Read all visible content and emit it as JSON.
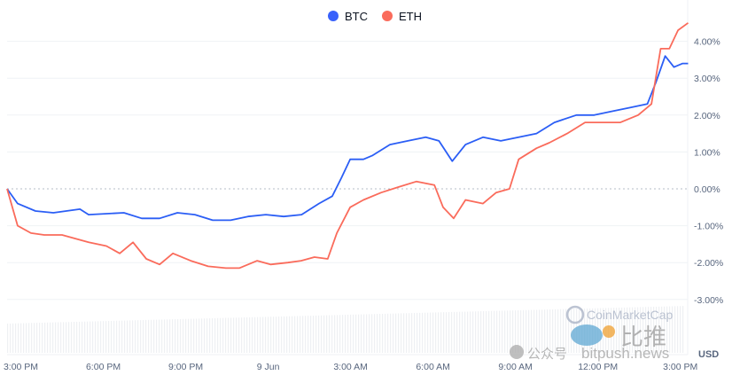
{
  "chart_data": {
    "type": "line",
    "title": "",
    "xlabel": "",
    "ylabel": "",
    "unit_label": "USD",
    "legend_position": "top-center",
    "grid": true,
    "ylim": [
      -3.5,
      4.8
    ],
    "y_ticks": [
      4,
      3,
      2,
      1,
      0,
      -1,
      -2,
      -3
    ],
    "y_tick_labels": [
      "4.00%",
      "3.00%",
      "2.00%",
      "1.00%",
      "0.00%",
      "-1.00%",
      "-2.00%",
      "-3.00%"
    ],
    "x_ticks": [
      "06-08T15:00",
      "06-08T18:00",
      "06-08T21:00",
      "06-09T00:00",
      "06-09T03:00",
      "06-09T06:00",
      "06-09T09:00",
      "06-09T12:00",
      "06-09T15:00"
    ],
    "x_tick_labels": [
      "3:00 PM",
      "6:00 PM",
      "9:00 PM",
      "9 Jun",
      "3:00 AM",
      "6:00 AM",
      "9:00 AM",
      "12:00 PM",
      "3:00 PM"
    ],
    "series": [
      {
        "name": "BTC",
        "color": "#3861fb",
        "points": [
          [
            "06-08T14:30",
            0
          ],
          [
            "06-08T14:53",
            -0.4
          ],
          [
            "06-08T15:32",
            -0.6
          ],
          [
            "06-08T16:11",
            -0.65
          ],
          [
            "06-08T17:09",
            -0.55
          ],
          [
            "06-08T17:28",
            -0.7
          ],
          [
            "06-08T18:45",
            -0.65
          ],
          [
            "06-08T19:24",
            -0.8
          ],
          [
            "06-08T20:03",
            -0.8
          ],
          [
            "06-08T20:42",
            -0.65
          ],
          [
            "06-08T21:20",
            -0.7
          ],
          [
            "06-08T21:59",
            -0.85
          ],
          [
            "06-08T22:38",
            -0.85
          ],
          [
            "06-08T23:16",
            -0.75
          ],
          [
            "06-08T23:55",
            -0.7
          ],
          [
            "06-09T00:34",
            -0.75
          ],
          [
            "06-09T01:13",
            -0.7
          ],
          [
            "06-09T01:51",
            -0.4
          ],
          [
            "06-09T02:20",
            -0.2
          ],
          [
            "06-09T02:40",
            0.3
          ],
          [
            "06-09T02:59",
            0.8
          ],
          [
            "06-09T03:28",
            0.8
          ],
          [
            "06-09T03:47",
            0.9
          ],
          [
            "06-09T04:26",
            1.2
          ],
          [
            "06-09T05:05",
            1.3
          ],
          [
            "06-09T05:44",
            1.4
          ],
          [
            "06-09T06:13",
            1.3
          ],
          [
            "06-09T06:42",
            0.75
          ],
          [
            "06-09T07:11",
            1.2
          ],
          [
            "06-09T07:49",
            1.4
          ],
          [
            "06-09T08:28",
            1.3
          ],
          [
            "06-09T09:07",
            1.4
          ],
          [
            "06-09T09:46",
            1.5
          ],
          [
            "06-09T10:25",
            1.8
          ],
          [
            "06-09T11:13",
            2.0
          ],
          [
            "06-09T11:52",
            2.0
          ],
          [
            "06-09T12:30",
            2.1
          ],
          [
            "06-09T13:09",
            2.2
          ],
          [
            "06-09T13:48",
            2.3
          ],
          [
            "06-09T14:07",
            2.9
          ],
          [
            "06-09T14:27",
            3.6
          ],
          [
            "06-09T14:46",
            3.3
          ],
          [
            "06-09T15:05",
            3.4
          ],
          [
            "06-09T15:17",
            3.4
          ]
        ]
      },
      {
        "name": "ETH",
        "color": "#ea3943",
        "points": [
          [
            "06-08T14:30",
            0
          ],
          [
            "06-08T14:53",
            -1.0
          ],
          [
            "06-08T15:22",
            -1.2
          ],
          [
            "06-08T15:51",
            -1.25
          ],
          [
            "06-08T16:30",
            -1.25
          ],
          [
            "06-08T17:28",
            -1.45
          ],
          [
            "06-08T18:07",
            -1.55
          ],
          [
            "06-08T18:36",
            -1.75
          ],
          [
            "06-08T19:05",
            -1.45
          ],
          [
            "06-08T19:34",
            -1.9
          ],
          [
            "06-08T20:03",
            -2.05
          ],
          [
            "06-08T20:32",
            -1.75
          ],
          [
            "06-08T21:11",
            -1.95
          ],
          [
            "06-08T21:49",
            -2.1
          ],
          [
            "06-08T22:28",
            -2.15
          ],
          [
            "06-08T22:57",
            -2.15
          ],
          [
            "06-08T23:36",
            -1.95
          ],
          [
            "06-09T00:05",
            -2.05
          ],
          [
            "06-09T00:43",
            -2.0
          ],
          [
            "06-09T01:12",
            -1.95
          ],
          [
            "06-09T01:41",
            -1.85
          ],
          [
            "06-09T02:10",
            -1.9
          ],
          [
            "06-09T02:30",
            -1.2
          ],
          [
            "06-09T02:59",
            -0.5
          ],
          [
            "06-09T03:28",
            -0.3
          ],
          [
            "06-09T04:07",
            -0.1
          ],
          [
            "06-09T04:45",
            0.05
          ],
          [
            "06-09T05:24",
            0.2
          ],
          [
            "06-09T06:03",
            0.1
          ],
          [
            "06-09T06:22",
            -0.5
          ],
          [
            "06-09T06:45",
            -0.8
          ],
          [
            "06-09T07:11",
            -0.3
          ],
          [
            "06-09T07:49",
            -0.4
          ],
          [
            "06-09T08:18",
            -0.1
          ],
          [
            "06-09T08:47",
            0
          ],
          [
            "06-09T09:07",
            0.8
          ],
          [
            "06-09T09:46",
            1.1
          ],
          [
            "06-09T10:14",
            1.25
          ],
          [
            "06-09T10:53",
            1.5
          ],
          [
            "06-09T11:32",
            1.8
          ],
          [
            "06-09T12:11",
            1.8
          ],
          [
            "06-09T12:49",
            1.8
          ],
          [
            "06-09T13:28",
            2.0
          ],
          [
            "06-09T13:57",
            2.3
          ],
          [
            "06-09T14:17",
            3.8
          ],
          [
            "06-09T14:36",
            3.8
          ],
          [
            "06-09T14:55",
            4.3
          ],
          [
            "06-09T15:17",
            4.5
          ]
        ]
      }
    ]
  },
  "watermark": {
    "brand": "CoinMarketCap",
    "cn_title": "比推",
    "cn_account": "公众号",
    "site": "bitpush.news"
  }
}
